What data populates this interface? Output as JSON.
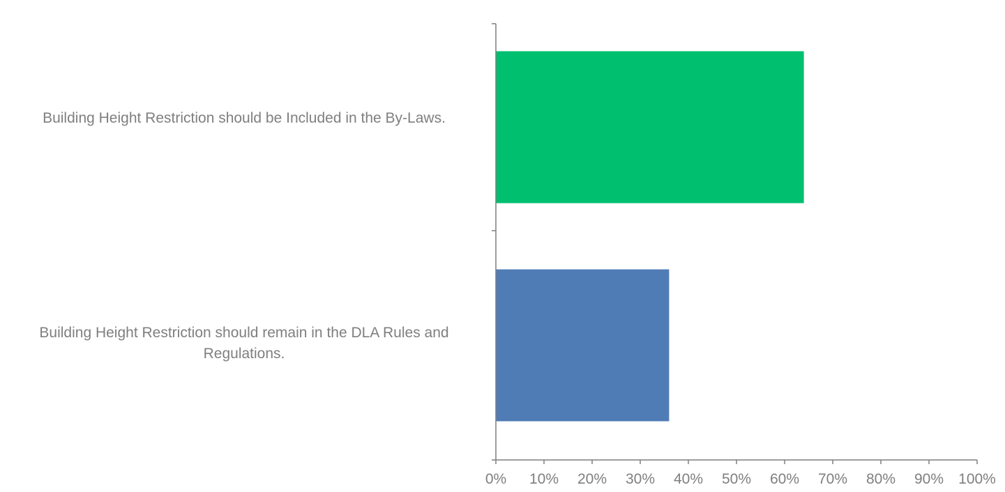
{
  "chart_data": {
    "type": "bar",
    "orientation": "horizontal",
    "categories": [
      "Building Height Restriction should be Included in the By-Laws.",
      "Building Height Restriction should remain in the DLA Rules and Regulations."
    ],
    "series": [
      {
        "values": [
          64,
          36
        ],
        "colors": [
          "#00bf6f",
          "#507cb6"
        ]
      }
    ],
    "xlim": [
      0,
      100
    ],
    "x_ticks": [
      "0%",
      "10%",
      "20%",
      "30%",
      "40%",
      "50%",
      "60%",
      "70%",
      "80%",
      "90%",
      "100%"
    ],
    "grid": false,
    "legend": "none",
    "axis_color": "#7f7f7f",
    "label_color": "#7f7f7f"
  }
}
